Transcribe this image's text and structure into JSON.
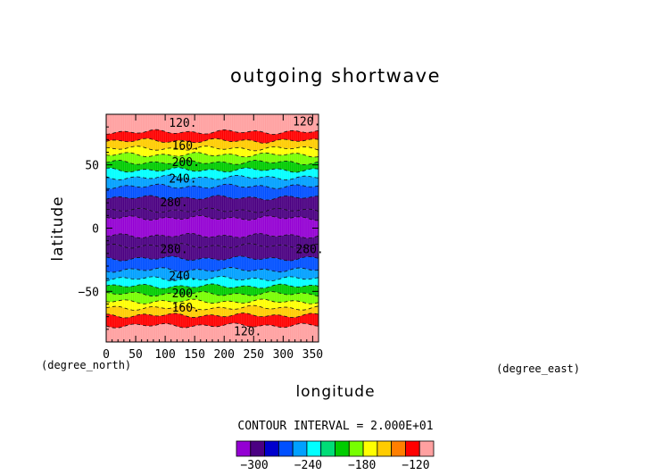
{
  "chart_data": {
    "type": "heatmap",
    "title": "outgoing shortwave",
    "xlabel": "longitude",
    "ylabel": "latitude",
    "x_unit": "(degree_east)",
    "y_unit": "(degree_north)",
    "xlim": [
      0,
      360
    ],
    "ylim": [
      -90,
      90
    ],
    "x_ticks": [
      "0",
      "50",
      "100",
      "150",
      "200",
      "250",
      "300",
      "350"
    ],
    "x_tick_values": [
      0,
      50,
      100,
      150,
      200,
      250,
      300,
      350
    ],
    "y_ticks": [
      "50",
      "0",
      "−50"
    ],
    "y_tick_values": [
      50,
      0,
      -50
    ],
    "contour_interval_text": "CONTOUR INTERVAL = 2.000E+01",
    "contour_interval": 20,
    "zlim": [
      -320,
      -100
    ],
    "colorbar_ticks": [
      "−300",
      "−240",
      "−180",
      "−120"
    ],
    "colorbar_tick_values": [
      -300,
      -240,
      -180,
      -120
    ],
    "colorbar_colors": [
      "#9400d3",
      "#4b0082",
      "#0000cd",
      "#0050ff",
      "#00a0ff",
      "#00ffff",
      "#00dd77",
      "#00cc00",
      "#77ff00",
      "#ffff00",
      "#ffcc00",
      "#ff7f00",
      "#ff0000",
      "#ffa0a0"
    ],
    "latitude_bands": [
      {
        "from": 90,
        "to": 76,
        "value": -110
      },
      {
        "from": 76,
        "to": 69,
        "value": -130
      },
      {
        "from": 69,
        "to": 63,
        "value": -150
      },
      {
        "from": 63,
        "to": 58,
        "value": -170
      },
      {
        "from": 58,
        "to": 52,
        "value": -190
      },
      {
        "from": 52,
        "to": 46,
        "value": -210
      },
      {
        "from": 46,
        "to": 40,
        "value": -230
      },
      {
        "from": 40,
        "to": 33,
        "value": -250
      },
      {
        "from": 33,
        "to": 24,
        "value": -270
      },
      {
        "from": 24,
        "to": 14,
        "value": -290
      },
      {
        "from": 14,
        "to": 8,
        "value": -300
      },
      {
        "from": 8,
        "to": -6,
        "value": -310
      },
      {
        "from": -6,
        "to": -14,
        "value": -300
      },
      {
        "from": -14,
        "to": -24,
        "value": -290
      },
      {
        "from": -24,
        "to": -33,
        "value": -270
      },
      {
        "from": -33,
        "to": -40,
        "value": -250
      },
      {
        "from": -40,
        "to": -46,
        "value": -230
      },
      {
        "from": -46,
        "to": -52,
        "value": -210
      },
      {
        "from": -52,
        "to": -58,
        "value": -190
      },
      {
        "from": -58,
        "to": -63,
        "value": -170
      },
      {
        "from": -63,
        "to": -69,
        "value": -150
      },
      {
        "from": -69,
        "to": -77,
        "value": -130
      },
      {
        "from": -77,
        "to": -90,
        "value": -110
      }
    ],
    "contour_labels": [
      {
        "text": "120.",
        "lon": 130,
        "lat": 83
      },
      {
        "text": "120.",
        "lon": 340,
        "lat": 84
      },
      {
        "text": "160.",
        "lon": 135,
        "lat": 65
      },
      {
        "text": "200.",
        "lon": 135,
        "lat": 52
      },
      {
        "text": "240.",
        "lon": 130,
        "lat": 39
      },
      {
        "text": "280.",
        "lon": 115,
        "lat": 20
      },
      {
        "text": "280.",
        "lon": 115,
        "lat": -17
      },
      {
        "text": "280.",
        "lon": 345,
        "lat": -17
      },
      {
        "text": "240.",
        "lon": 130,
        "lat": -38
      },
      {
        "text": "200.",
        "lon": 135,
        "lat": -52
      },
      {
        "text": "160.",
        "lon": 135,
        "lat": -63
      },
      {
        "text": "120.",
        "lon": 240,
        "lat": -82
      }
    ]
  }
}
